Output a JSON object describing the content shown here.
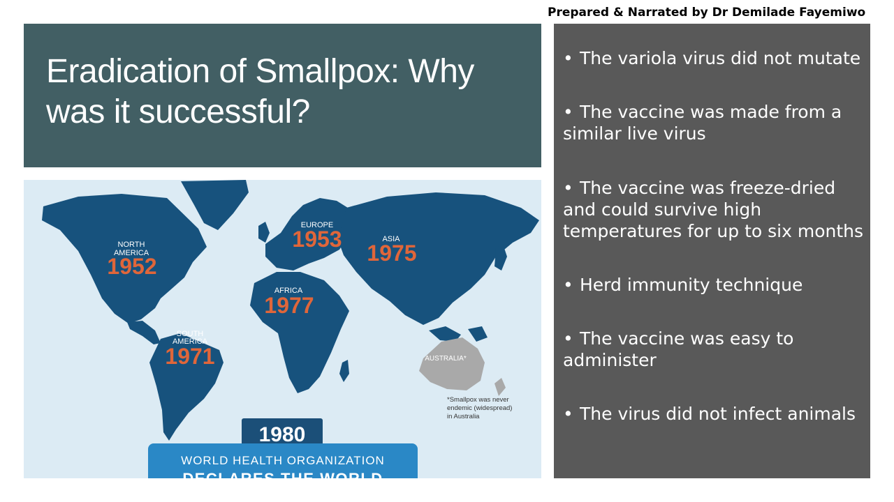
{
  "header": {
    "narrator": "Prepared & Narrated by Dr Demilade Fayemiwo"
  },
  "title": {
    "line1": "Eradication of Smallpox: Why",
    "line2": "was it successful?"
  },
  "map": {
    "regions": [
      {
        "name_line1": "NORTH",
        "name_line2": "AMERICA",
        "year": "1952"
      },
      {
        "name_line1": "EUROPE",
        "name_line2": "",
        "year": "1953"
      },
      {
        "name_line1": "ASIA",
        "name_line2": "",
        "year": "1975"
      },
      {
        "name_line1": "AFRICA",
        "name_line2": "",
        "year": "1977"
      },
      {
        "name_line1": "SOUTH",
        "name_line2": "AMERICA",
        "year": "1971"
      }
    ],
    "australia_label": "AUSTRALIA*",
    "footnote_line1": "*Smallpox was never",
    "footnote_line2": "endemic (widespread)",
    "footnote_line3": "in Australia",
    "banner_year": "1980",
    "banner_line1": "WORLD HEALTH ORGANIZATION",
    "banner_line2": "DECLARES THE WORLD",
    "colors": {
      "ocean": "#dcebf4",
      "land": "#17527d",
      "australia": "#a9a9a9",
      "year": "#e0663a",
      "banner_dark": "#1b4f78",
      "banner_light": "#2a88c6"
    }
  },
  "bullets": {
    "symbol": "•",
    "items": [
      {
        "line1": "The variola virus did not mutate",
        "line2": "",
        "line3": ""
      },
      {
        "line1": "The vaccine was made from a",
        "line2": "similar live virus",
        "line3": ""
      },
      {
        "line1": "The vaccine was freeze-dried",
        "line2": "and could survive high",
        "line3": "temperatures for up to six months"
      },
      {
        "line1": "Herd immunity technique",
        "line2": "",
        "line3": ""
      },
      {
        "line1": "The vaccine was easy to",
        "line2": "administer",
        "line3": ""
      },
      {
        "line1": "The virus did not infect animals",
        "line2": "",
        "line3": ""
      }
    ]
  }
}
